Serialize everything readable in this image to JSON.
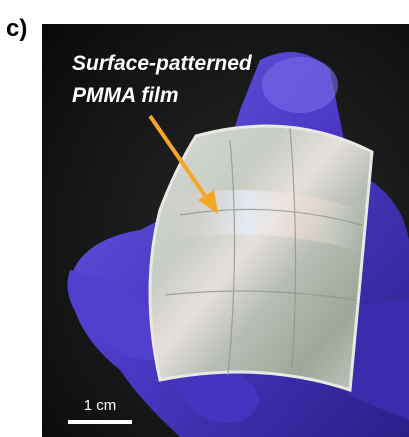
{
  "panel_label": "c)",
  "annotation": {
    "lines": [
      "Surface-patterned",
      "PMMA film"
    ]
  },
  "scale_bar": {
    "label": "1 cm"
  }
}
